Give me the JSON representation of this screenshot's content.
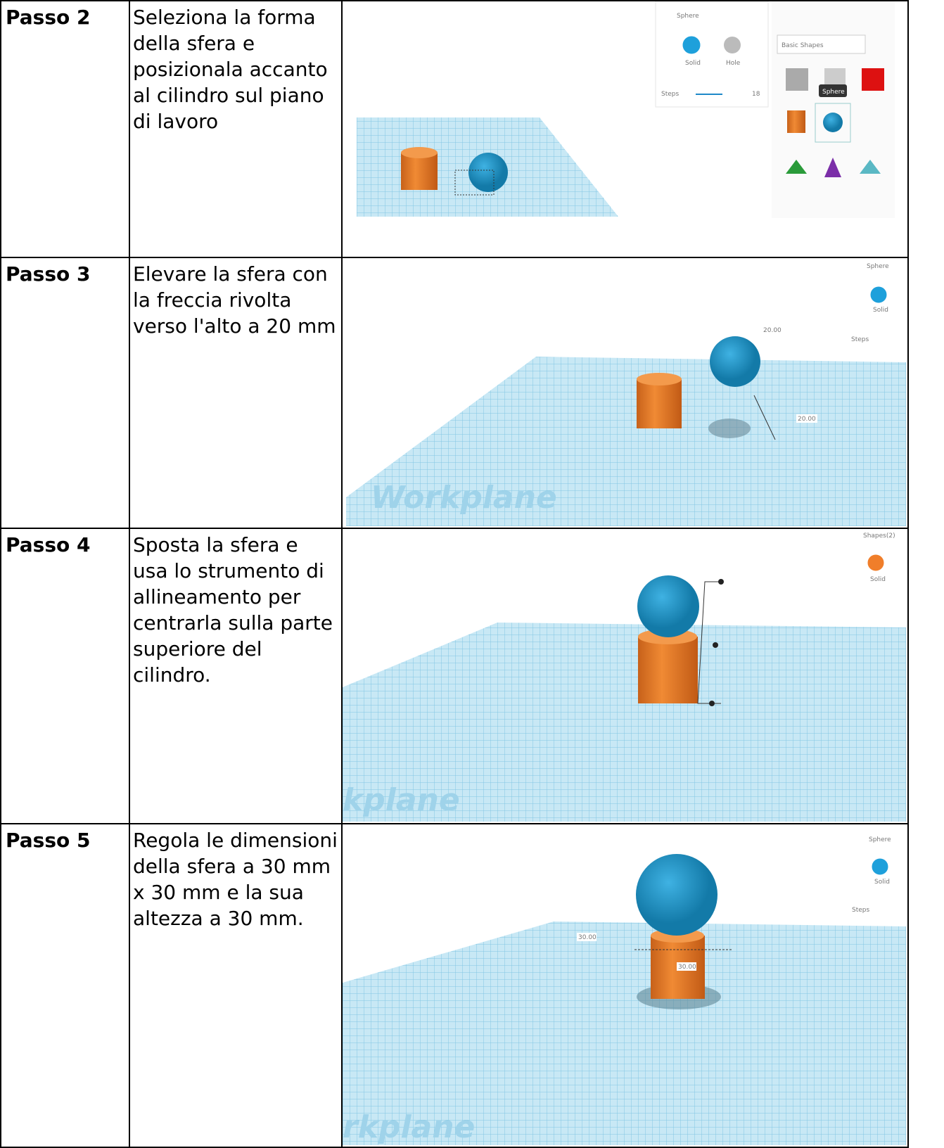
{
  "table": {
    "rows": [
      {
        "step": "Passo 2",
        "instruction": "Seleziona la forma della sfera e posizionala accanto al cilindro sul piano di lavoro",
        "screenshot": {
          "panel_title": "Sphere",
          "solid": "Solid",
          "hole": "Hole",
          "steps": "Steps",
          "steps_value": "18",
          "library": "Basic Shapes",
          "tooltip": "Sphere"
        }
      },
      {
        "step": "Passo 3",
        "instruction": "Elevare la sfera con la freccia rivolta verso l'alto a 20 mm",
        "screenshot": {
          "panel_title": "Sphere",
          "solid": "Solid",
          "steps": "Steps",
          "height_label": "20.00",
          "elevation_label": "20.00",
          "workplane": "Workplane"
        }
      },
      {
        "step": "Passo 4",
        "instruction": "Sposta la sfera e usa lo strumento di allineamento per centrarla sulla parte superiore del cilindro.",
        "screenshot": {
          "panel_title": "Shapes(2)",
          "solid": "Solid",
          "workplane": "kplane"
        }
      },
      {
        "step": "Passo 5",
        "instruction": "Regola le dimensioni della sfera a 30 mm x 30 mm e la sua altezza a 30 mm.",
        "screenshot": {
          "panel_title": "Sphere",
          "solid": "Solid",
          "steps": "Steps",
          "width_label": "30.00",
          "height_label": "30.00",
          "workplane": "rkplane"
        }
      }
    ]
  }
}
